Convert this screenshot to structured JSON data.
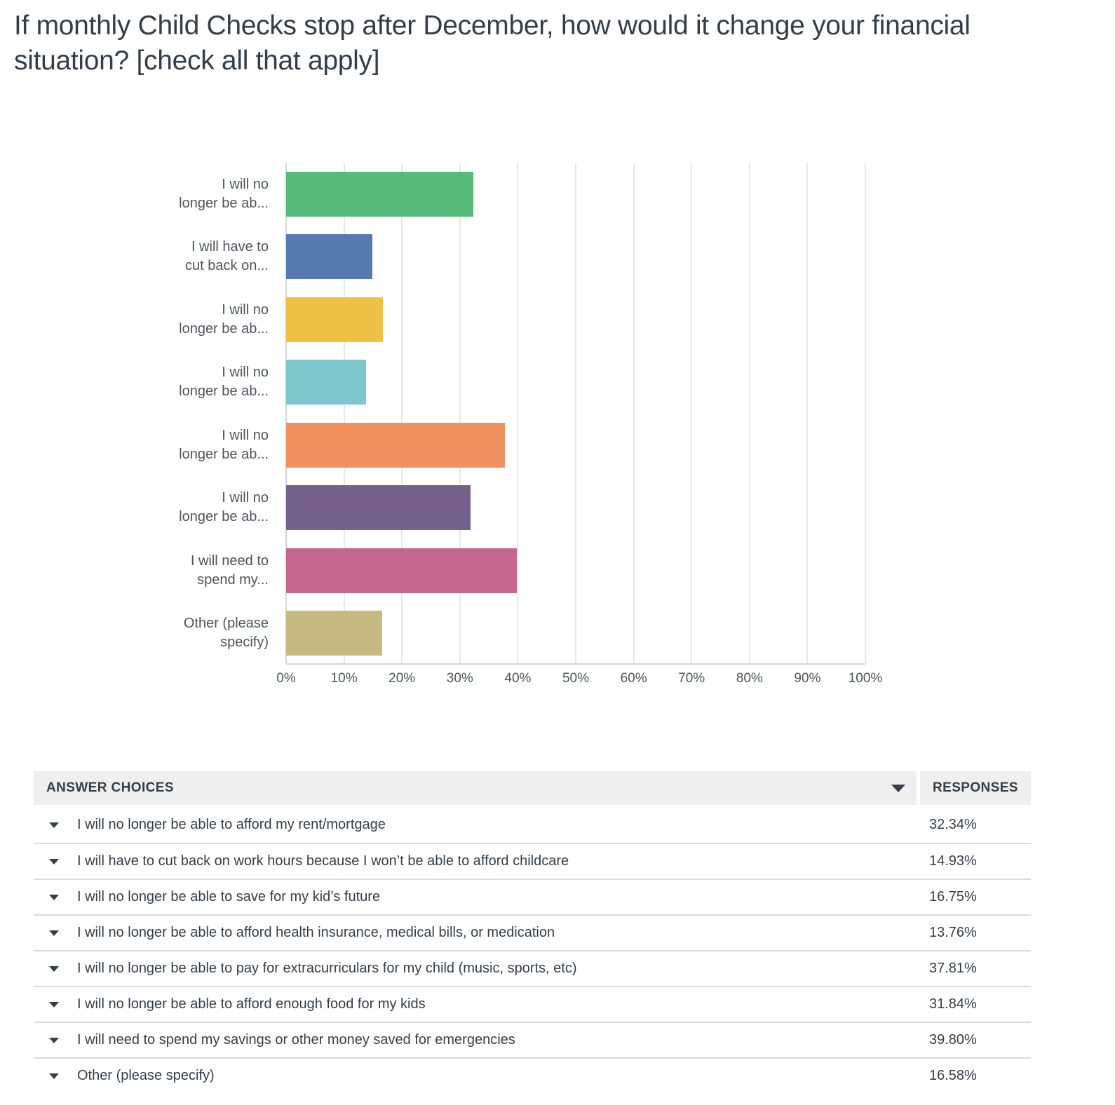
{
  "page": {
    "title": "If monthly Child Checks stop after December, how would it change your financial situation? [check all that apply]"
  },
  "chart_data": {
    "type": "bar",
    "orientation": "horizontal",
    "title": "",
    "xlabel": "",
    "ylabel": "",
    "xlim": [
      0,
      100
    ],
    "grid": true,
    "x_ticks": [
      "0%",
      "10%",
      "20%",
      "30%",
      "40%",
      "50%",
      "60%",
      "70%",
      "80%",
      "90%",
      "100%"
    ],
    "x_tick_values": [
      0,
      10,
      20,
      30,
      40,
      50,
      60,
      70,
      80,
      90,
      100
    ],
    "categories": [
      "I will no longer be able to afford my rent/mortgage",
      "I will have to cut back on work hours because I won’t be able to afford childcare",
      "I will no longer be able to save for my kid’s future",
      "I will no longer be able to afford health insurance, medical bills, or medication",
      "I will no longer be able to pay for extracurriculars for my child (music, sports, etc)",
      "I will no longer be able to afford enough food for my kids",
      "I will need to spend my savings or other money saved for  emergencies",
      "Other (please specify)"
    ],
    "category_labels_wrapped": [
      [
        "I will no",
        "longer be ab..."
      ],
      [
        "I will have to",
        "cut back on..."
      ],
      [
        "I will no",
        "longer be ab..."
      ],
      [
        "I will no",
        "longer be ab..."
      ],
      [
        "I will no",
        "longer be ab..."
      ],
      [
        "I will no",
        "longer be ab..."
      ],
      [
        "I will need to",
        "spend my..."
      ],
      [
        "Other (please",
        "specify)"
      ]
    ],
    "values": [
      32.34,
      14.93,
      16.75,
      13.76,
      37.81,
      31.84,
      39.8,
      16.58
    ],
    "bar_colors": [
      "#57ba79",
      "#5779b2",
      "#f0bf45",
      "#80c6cd",
      "#f0915f",
      "#75618c",
      "#c5668f",
      "#c6b982"
    ]
  },
  "table": {
    "header": {
      "answer_choices": "ANSWER CHOICES",
      "responses": "RESPONSES"
    },
    "rows": [
      {
        "label": "I will no longer be able to afford my rent/mortgage",
        "value": "32.34%"
      },
      {
        "label": "I will have to cut back on work hours because I won’t be able to afford childcare",
        "value": "14.93%"
      },
      {
        "label": "I will no longer be able to save for my kid’s future",
        "value": "16.75%"
      },
      {
        "label": "I will no longer be able to afford health insurance, medical bills, or medication",
        "value": "13.76%"
      },
      {
        "label": "I will no longer be able to pay for extracurriculars for my child (music, sports, etc)",
        "value": "37.81%"
      },
      {
        "label": "I will no longer be able to afford enough food for my kids",
        "value": "31.84%"
      },
      {
        "label": "I will need to spend my savings or other money saved for  emergencies",
        "value": "39.80%"
      },
      {
        "label": "Other (please specify)",
        "value": "16.58%"
      }
    ]
  },
  "colors": {
    "text_primary": "#333e48",
    "text_axis": "#4d545c",
    "gridline": "#e8e8e8",
    "axis_line": "#d6d6d6",
    "table_header_bg": "#efefef",
    "row_divider": "#dadada"
  }
}
